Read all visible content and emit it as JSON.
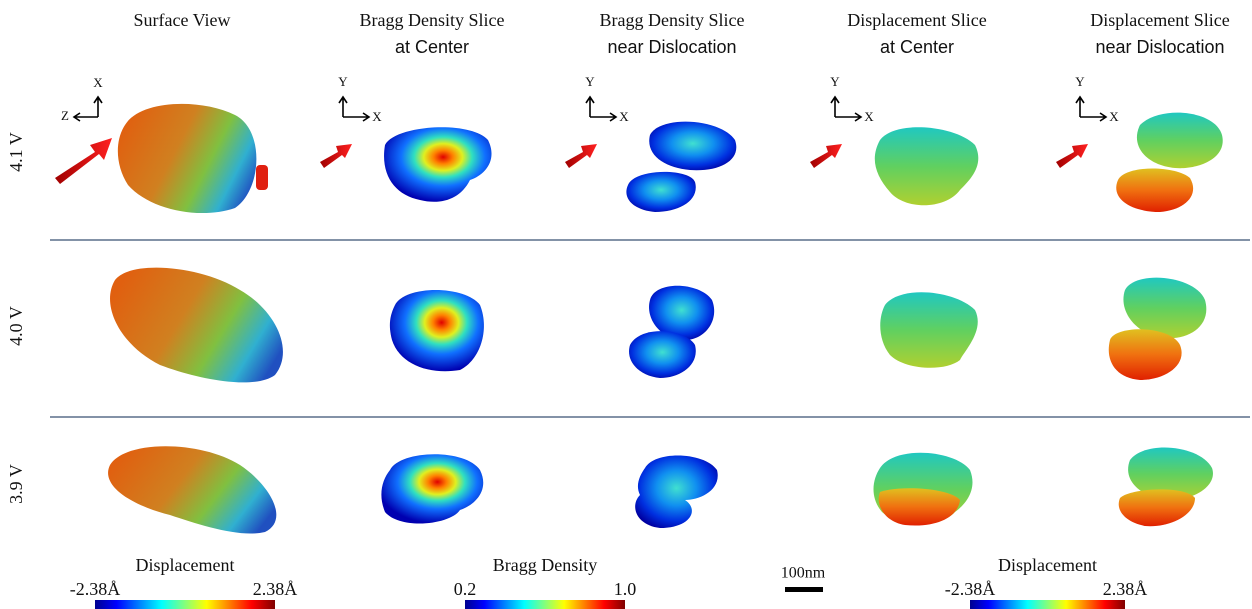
{
  "columns": [
    {
      "lines": [
        "Surface View"
      ]
    },
    {
      "lines": [
        "Bragg Density Slice",
        "at Center"
      ]
    },
    {
      "lines": [
        "Bragg Density Slice",
        "near Dislocation"
      ]
    },
    {
      "lines": [
        "Displacement Slice",
        "at Center"
      ]
    },
    {
      "lines": [
        "Displacement Slice",
        "near Dislocation"
      ]
    }
  ],
  "rows": [
    "4.1 V",
    "4.0 V",
    "3.9 V"
  ],
  "axes": [
    {
      "vertical": "X",
      "horizontal": "Z"
    },
    {
      "vertical": "Y",
      "horizontal": "X"
    },
    {
      "vertical": "Y",
      "horizontal": "X"
    },
    {
      "vertical": "Y",
      "horizontal": "X"
    },
    {
      "vertical": "Y",
      "horizontal": "X"
    }
  ],
  "colorbars": [
    {
      "title": "Displacement",
      "min": "-2.38Å",
      "max": "2.38Å"
    },
    {
      "title": "Bragg Density",
      "min": "0.2",
      "max": "1.0"
    },
    {
      "title": "Displacement",
      "min": "-2.38Å",
      "max": "2.38Å"
    }
  ],
  "scale_bar": {
    "label": "100nm"
  }
}
